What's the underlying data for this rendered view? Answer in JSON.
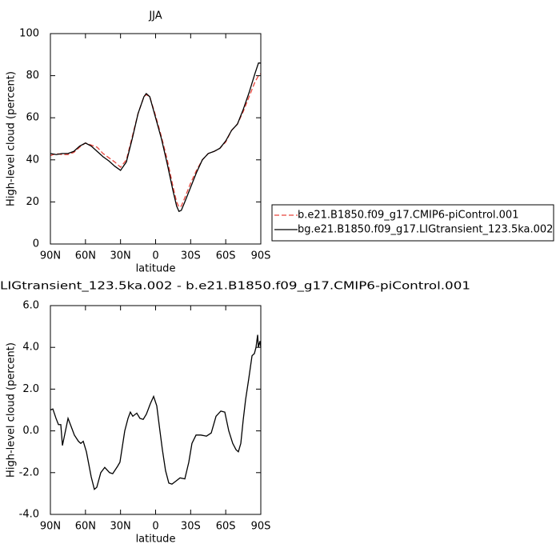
{
  "chart_data": [
    {
      "type": "line",
      "title": "JJA",
      "xlabel": "latitude",
      "ylabel": "High-level cloud (percent)",
      "x": [
        90,
        85,
        80,
        75,
        70,
        65,
        60,
        55,
        50,
        45,
        40,
        35,
        30,
        25,
        20,
        15,
        10,
        8,
        5,
        0,
        -5,
        -10,
        -15,
        -18,
        -20,
        -22,
        -25,
        -30,
        -35,
        -40,
        -45,
        -50,
        -55,
        -60,
        -65,
        -70,
        -75,
        -80,
        -85,
        -88,
        -90
      ],
      "series": [
        {
          "name": "b.e21.B1850.f09_g17.CMIP6-piControl.001",
          "color": "#e8453c",
          "line_style": "dashed",
          "values": [
            42,
            43,
            42.5,
            42.5,
            43.5,
            46,
            48,
            47,
            46,
            43,
            41,
            39,
            36.5,
            40,
            51,
            62,
            70,
            71,
            70,
            61,
            51,
            40,
            27,
            20,
            17.5,
            18,
            22,
            29,
            35,
            40,
            43,
            44,
            45.5,
            48.5,
            54,
            57,
            63,
            70,
            77,
            80,
            81
          ]
        },
        {
          "name": "bg.e21.B1850.f09_g17.LIGtransient_123.5ka.002",
          "color": "#000000",
          "line_style": "solid",
          "values": [
            43,
            42.5,
            43,
            43,
            44,
            46.5,
            48,
            46.5,
            44,
            41.5,
            39.5,
            37,
            35,
            39,
            50,
            62,
            70,
            71.5,
            70,
            60,
            50,
            38,
            25,
            18,
            15.5,
            16,
            20,
            27,
            34,
            40,
            43,
            44,
            45.5,
            49,
            54,
            57,
            64,
            72,
            81,
            86,
            86
          ]
        }
      ],
      "xlim": [
        90,
        -90
      ],
      "xticks": [
        {
          "value": 90,
          "label": "90N"
        },
        {
          "value": 60,
          "label": "60N"
        },
        {
          "value": 30,
          "label": "30N"
        },
        0,
        {
          "value": -30,
          "label": "30S"
        },
        {
          "value": -60,
          "label": "60S"
        },
        {
          "value": -90,
          "label": "90S"
        }
      ],
      "ylim": [
        0,
        100
      ],
      "yticks": [
        0,
        20,
        40,
        60,
        80,
        100
      ],
      "legend": "right"
    },
    {
      "type": "line",
      "title": "LIGtransient_123.5ka.002 - b.e21.B1850.f09_g17.CMIP6-piControl.001",
      "xlabel": "latitude",
      "ylabel": "High-level cloud (percent)",
      "x": [
        90,
        87.9,
        85.2,
        83.1,
        81.1,
        79.7,
        74.9,
        71.5,
        69.5,
        66.0,
        64.0,
        61.9,
        59.2,
        55.1,
        52.4,
        50.3,
        46.9,
        43.5,
        39.4,
        36.7,
        32.6,
        30.5,
        26.4,
        23.6,
        21.6,
        19.5,
        16.1,
        13.4,
        10.6,
        7.9,
        4.5,
        1.7,
        -1.0,
        -3.7,
        -5.8,
        -8.5,
        -11.3,
        -14.0,
        -17.5,
        -20.9,
        -25.0,
        -28.4,
        -31.1,
        -34.6,
        -38.7,
        -43.5,
        -47.6,
        -51.7,
        -55.8,
        -59.2,
        -62.6,
        -66.0,
        -68.8,
        -70.8,
        -72.9,
        -74.9,
        -77.0,
        -79.7,
        -82.5,
        -84.5,
        -85.9,
        -87.3,
        -87.9,
        -89.3,
        -90
      ],
      "series": [
        {
          "color": "#000000",
          "line_style": "solid",
          "values": [
            1.0,
            1.05,
            0.6,
            0.3,
            0.3,
            -0.7,
            0.6,
            0.1,
            -0.2,
            -0.5,
            -0.6,
            -0.5,
            -1.0,
            -2.2,
            -2.8,
            -2.7,
            -2.0,
            -1.75,
            -2.0,
            -2.05,
            -1.7,
            -1.5,
            0.0,
            0.6,
            0.9,
            0.7,
            0.85,
            0.6,
            0.55,
            0.8,
            1.3,
            1.65,
            1.2,
            0.0,
            -0.9,
            -1.9,
            -2.5,
            -2.55,
            -2.4,
            -2.25,
            -2.3,
            -1.5,
            -0.6,
            -0.2,
            -0.2,
            -0.25,
            -0.1,
            0.7,
            0.95,
            0.9,
            0.0,
            -0.6,
            -0.9,
            -1.0,
            -0.6,
            0.5,
            1.5,
            2.5,
            3.6,
            3.7,
            4.0,
            4.6,
            4.0,
            4.3,
            4.0
          ]
        }
      ],
      "xlim": [
        90,
        -90
      ],
      "xticks": [
        {
          "value": 90,
          "label": "90N"
        },
        {
          "value": 60,
          "label": "60N"
        },
        {
          "value": 30,
          "label": "30N"
        },
        0,
        {
          "value": -30,
          "label": "30S"
        },
        {
          "value": -60,
          "label": "60S"
        },
        {
          "value": -90,
          "label": "90S"
        }
      ],
      "ylim": [
        -4,
        6
      ],
      "yticks": [
        {
          "value": -4,
          "label": "-4.0"
        },
        {
          "value": -2,
          "label": "-2.0"
        },
        {
          "value": 0,
          "label": "0.0"
        },
        {
          "value": 2,
          "label": "2.0"
        },
        {
          "value": 4,
          "label": "4.0"
        },
        {
          "value": 6,
          "label": "6.0"
        }
      ]
    }
  ]
}
